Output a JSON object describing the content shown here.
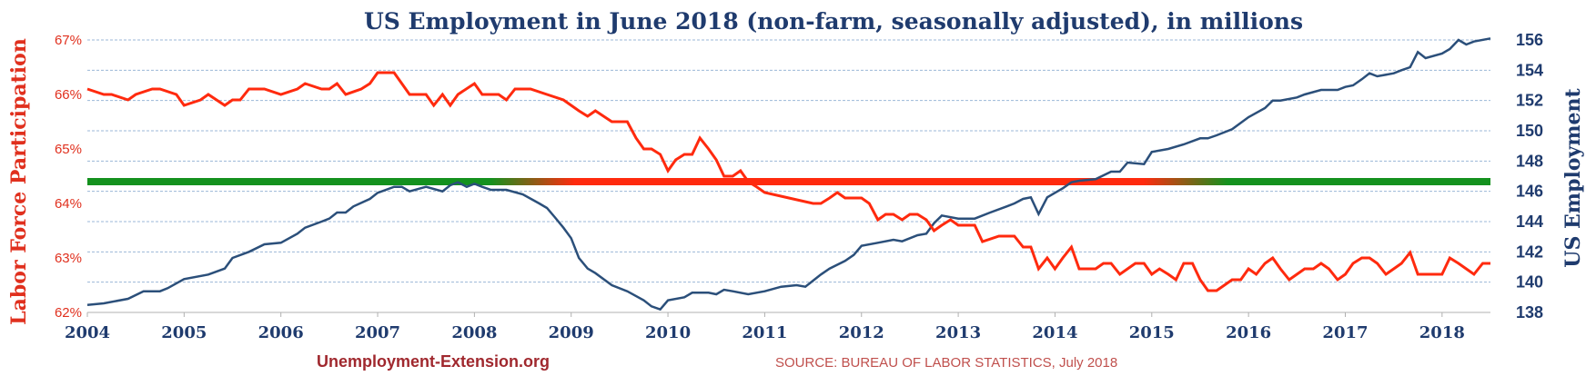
{
  "chart_data": {
    "type": "line",
    "title": "US Employment in June 2018 (non-farm, seasonally adjusted), in millions",
    "ylabel_left": "Labor Force Participation",
    "ylabel_right": "US Employment",
    "left_ticks": [
      "62%",
      "63%",
      "64%",
      "65%",
      "66%",
      "67%"
    ],
    "right_ticks": [
      "138",
      "140",
      "142",
      "144",
      "146",
      "148",
      "150",
      "152",
      "154",
      "156"
    ],
    "x_ticks": [
      "2004",
      "2005",
      "2006",
      "2007",
      "2008",
      "2009",
      "2010",
      "2011",
      "2012",
      "2013",
      "2014",
      "2015",
      "2016",
      "2017",
      "2018"
    ],
    "xlim": [
      2004,
      2018.5
    ],
    "ylim_left": [
      62,
      67
    ],
    "ylim_right": [
      138,
      156
    ],
    "grid": true,
    "colors": {
      "participation": "#ff2a0e",
      "employment": "#2b4f7a",
      "bar_green": "#14911e",
      "bar_red": "#ff2a0e",
      "grid": "#9bb7d7"
    },
    "participation_series": {
      "x": [
        2004.0,
        2004.17,
        2004.25,
        2004.42,
        2004.5,
        2004.67,
        2004.75,
        2004.92,
        2005.0,
        2005.17,
        2005.25,
        2005.42,
        2005.5,
        2005.58,
        2005.67,
        2005.83,
        2006.0,
        2006.17,
        2006.25,
        2006.42,
        2006.5,
        2006.58,
        2006.67,
        2006.83,
        2006.92,
        2007.0,
        2007.17,
        2007.25,
        2007.33,
        2007.5,
        2007.58,
        2007.67,
        2007.75,
        2007.83,
        2008.0,
        2008.08,
        2008.17,
        2008.25,
        2008.33,
        2008.42,
        2008.58,
        2008.75,
        2008.92,
        2009.0,
        2009.08,
        2009.17,
        2009.25,
        2009.42,
        2009.58,
        2009.67,
        2009.75,
        2009.83,
        2009.92,
        2010.0,
        2010.08,
        2010.17,
        2010.25,
        2010.33,
        2010.42,
        2010.5,
        2010.58,
        2010.67,
        2010.75,
        2010.83,
        2010.92,
        2011.0,
        2011.25,
        2011.5,
        2011.58,
        2011.67,
        2011.75,
        2011.83,
        2012.0,
        2012.08,
        2012.17,
        2012.25,
        2012.33,
        2012.42,
        2012.5,
        2012.58,
        2012.67,
        2012.75,
        2012.83,
        2012.92,
        2013.0,
        2013.17,
        2013.25,
        2013.42,
        2013.58,
        2013.67,
        2013.75,
        2013.83,
        2013.92,
        2014.0,
        2014.08,
        2014.17,
        2014.25,
        2014.42,
        2014.5,
        2014.58,
        2014.67,
        2014.75,
        2014.83,
        2014.92,
        2015.0,
        2015.08,
        2015.17,
        2015.25,
        2015.33,
        2015.42,
        2015.5,
        2015.58,
        2015.67,
        2015.75,
        2015.83,
        2015.92,
        2016.0,
        2016.08,
        2016.17,
        2016.25,
        2016.33,
        2016.42,
        2016.5,
        2016.58,
        2016.67,
        2016.75,
        2016.83,
        2016.92,
        2017.0,
        2017.08,
        2017.17,
        2017.25,
        2017.33,
        2017.42,
        2017.5,
        2017.58,
        2017.67,
        2017.75,
        2017.83,
        2017.92,
        2018.0,
        2018.08,
        2018.17,
        2018.25,
        2018.33,
        2018.42,
        2018.5
      ],
      "values": [
        66.1,
        66.0,
        66.0,
        65.9,
        66.0,
        66.1,
        66.1,
        66.0,
        65.8,
        65.9,
        66.0,
        65.8,
        65.9,
        65.9,
        66.1,
        66.1,
        66.0,
        66.1,
        66.2,
        66.1,
        66.1,
        66.2,
        66.0,
        66.1,
        66.2,
        66.4,
        66.4,
        66.2,
        66.0,
        66.0,
        65.8,
        66.0,
        65.8,
        66.0,
        66.2,
        66.0,
        66.0,
        66.0,
        65.9,
        66.1,
        66.1,
        66.0,
        65.9,
        65.8,
        65.7,
        65.6,
        65.7,
        65.5,
        65.5,
        65.2,
        65.0,
        65.0,
        64.9,
        64.6,
        64.8,
        64.9,
        64.9,
        65.2,
        65.0,
        64.8,
        64.5,
        64.5,
        64.6,
        64.4,
        64.3,
        64.2,
        64.1,
        64.0,
        64.0,
        64.1,
        64.2,
        64.1,
        64.1,
        64.0,
        63.7,
        63.8,
        63.8,
        63.7,
        63.8,
        63.8,
        63.7,
        63.5,
        63.6,
        63.7,
        63.6,
        63.6,
        63.3,
        63.4,
        63.4,
        63.2,
        63.2,
        62.8,
        63.0,
        62.8,
        63.0,
        63.2,
        62.8,
        62.8,
        62.9,
        62.9,
        62.7,
        62.8,
        62.9,
        62.9,
        62.7,
        62.8,
        62.7,
        62.6,
        62.9,
        62.9,
        62.6,
        62.4,
        62.4,
        62.5,
        62.6,
        62.6,
        62.8,
        62.7,
        62.9,
        63.0,
        62.8,
        62.6,
        62.7,
        62.8,
        62.8,
        62.9,
        62.8,
        62.6,
        62.7,
        62.9,
        63.0,
        63.0,
        62.9,
        62.7,
        62.8,
        62.9,
        63.1,
        62.7,
        62.7,
        62.7,
        62.7,
        63.0,
        62.9,
        62.8,
        62.7,
        62.9,
        62.9
      ]
    },
    "employment_series": {
      "x": [
        2004.0,
        2004.17,
        2004.42,
        2004.58,
        2004.75,
        2004.83,
        2005.0,
        2005.25,
        2005.42,
        2005.5,
        2005.67,
        2005.83,
        2006.0,
        2006.17,
        2006.25,
        2006.42,
        2006.5,
        2006.58,
        2006.67,
        2006.75,
        2006.92,
        2007.0,
        2007.17,
        2007.25,
        2007.33,
        2007.5,
        2007.67,
        2007.75,
        2007.83,
        2007.92,
        2008.0,
        2008.08,
        2008.17,
        2008.33,
        2008.5,
        2008.67,
        2008.75,
        2008.83,
        2008.92,
        2009.0,
        2009.08,
        2009.17,
        2009.25,
        2009.42,
        2009.58,
        2009.75,
        2009.83,
        2009.92,
        2010.0,
        2010.17,
        2010.25,
        2010.42,
        2010.5,
        2010.58,
        2010.67,
        2010.83,
        2011.0,
        2011.17,
        2011.33,
        2011.42,
        2011.58,
        2011.67,
        2011.83,
        2011.92,
        2012.0,
        2012.17,
        2012.33,
        2012.42,
        2012.58,
        2012.67,
        2012.75,
        2012.83,
        2013.0,
        2013.17,
        2013.33,
        2013.5,
        2013.58,
        2013.67,
        2013.75,
        2013.83,
        2013.92,
        2014.0,
        2014.08,
        2014.17,
        2014.25,
        2014.42,
        2014.58,
        2014.67,
        2014.75,
        2014.92,
        2015.0,
        2015.17,
        2015.33,
        2015.5,
        2015.58,
        2015.67,
        2015.83,
        2016.0,
        2016.17,
        2016.25,
        2016.33,
        2016.5,
        2016.58,
        2016.75,
        2016.92,
        2017.0,
        2017.08,
        2017.17,
        2017.25,
        2017.33,
        2017.5,
        2017.58,
        2017.67,
        2017.75,
        2017.83,
        2018.0,
        2018.08,
        2018.17,
        2018.25,
        2018.33,
        2018.5
      ],
      "values": [
        138.5,
        138.6,
        138.9,
        139.4,
        139.4,
        139.6,
        140.2,
        140.5,
        140.9,
        141.6,
        142.0,
        142.5,
        142.6,
        143.2,
        143.6,
        144.0,
        144.2,
        144.6,
        144.6,
        145.0,
        145.5,
        145.9,
        146.3,
        146.3,
        146.0,
        146.3,
        146.0,
        146.4,
        146.6,
        146.3,
        146.5,
        146.3,
        146.1,
        146.1,
        145.8,
        145.2,
        144.9,
        144.3,
        143.6,
        142.9,
        141.6,
        140.9,
        140.6,
        139.8,
        139.4,
        138.8,
        138.4,
        138.2,
        138.8,
        139.0,
        139.3,
        139.3,
        139.2,
        139.5,
        139.4,
        139.2,
        139.4,
        139.7,
        139.8,
        139.7,
        140.5,
        140.9,
        141.4,
        141.8,
        142.4,
        142.6,
        142.8,
        142.7,
        143.1,
        143.2,
        143.9,
        144.4,
        144.2,
        144.2,
        144.6,
        145.0,
        145.2,
        145.5,
        145.6,
        144.5,
        145.6,
        145.9,
        146.2,
        146.6,
        146.7,
        146.8,
        147.3,
        147.3,
        147.9,
        147.8,
        148.6,
        148.8,
        149.1,
        149.5,
        149.5,
        149.7,
        150.1,
        150.9,
        151.5,
        152.0,
        152.0,
        152.2,
        152.4,
        152.7,
        152.7,
        152.9,
        153.0,
        153.4,
        153.8,
        153.6,
        153.8,
        154.0,
        154.2,
        155.2,
        154.8,
        155.1,
        155.4,
        156.0,
        155.7,
        155.9,
        156.1
      ]
    },
    "reference_bar": {
      "left_value": 64.4,
      "x_start": 2004.0,
      "x_end": 2018.5,
      "red_x_start": 2008.6,
      "red_x_end": 2015.35
    }
  },
  "footer": {
    "website": "Unemployment-Extension.org",
    "source": "SOURCE: BUREAU OF LABOR STATISTICS,  July 2018"
  }
}
